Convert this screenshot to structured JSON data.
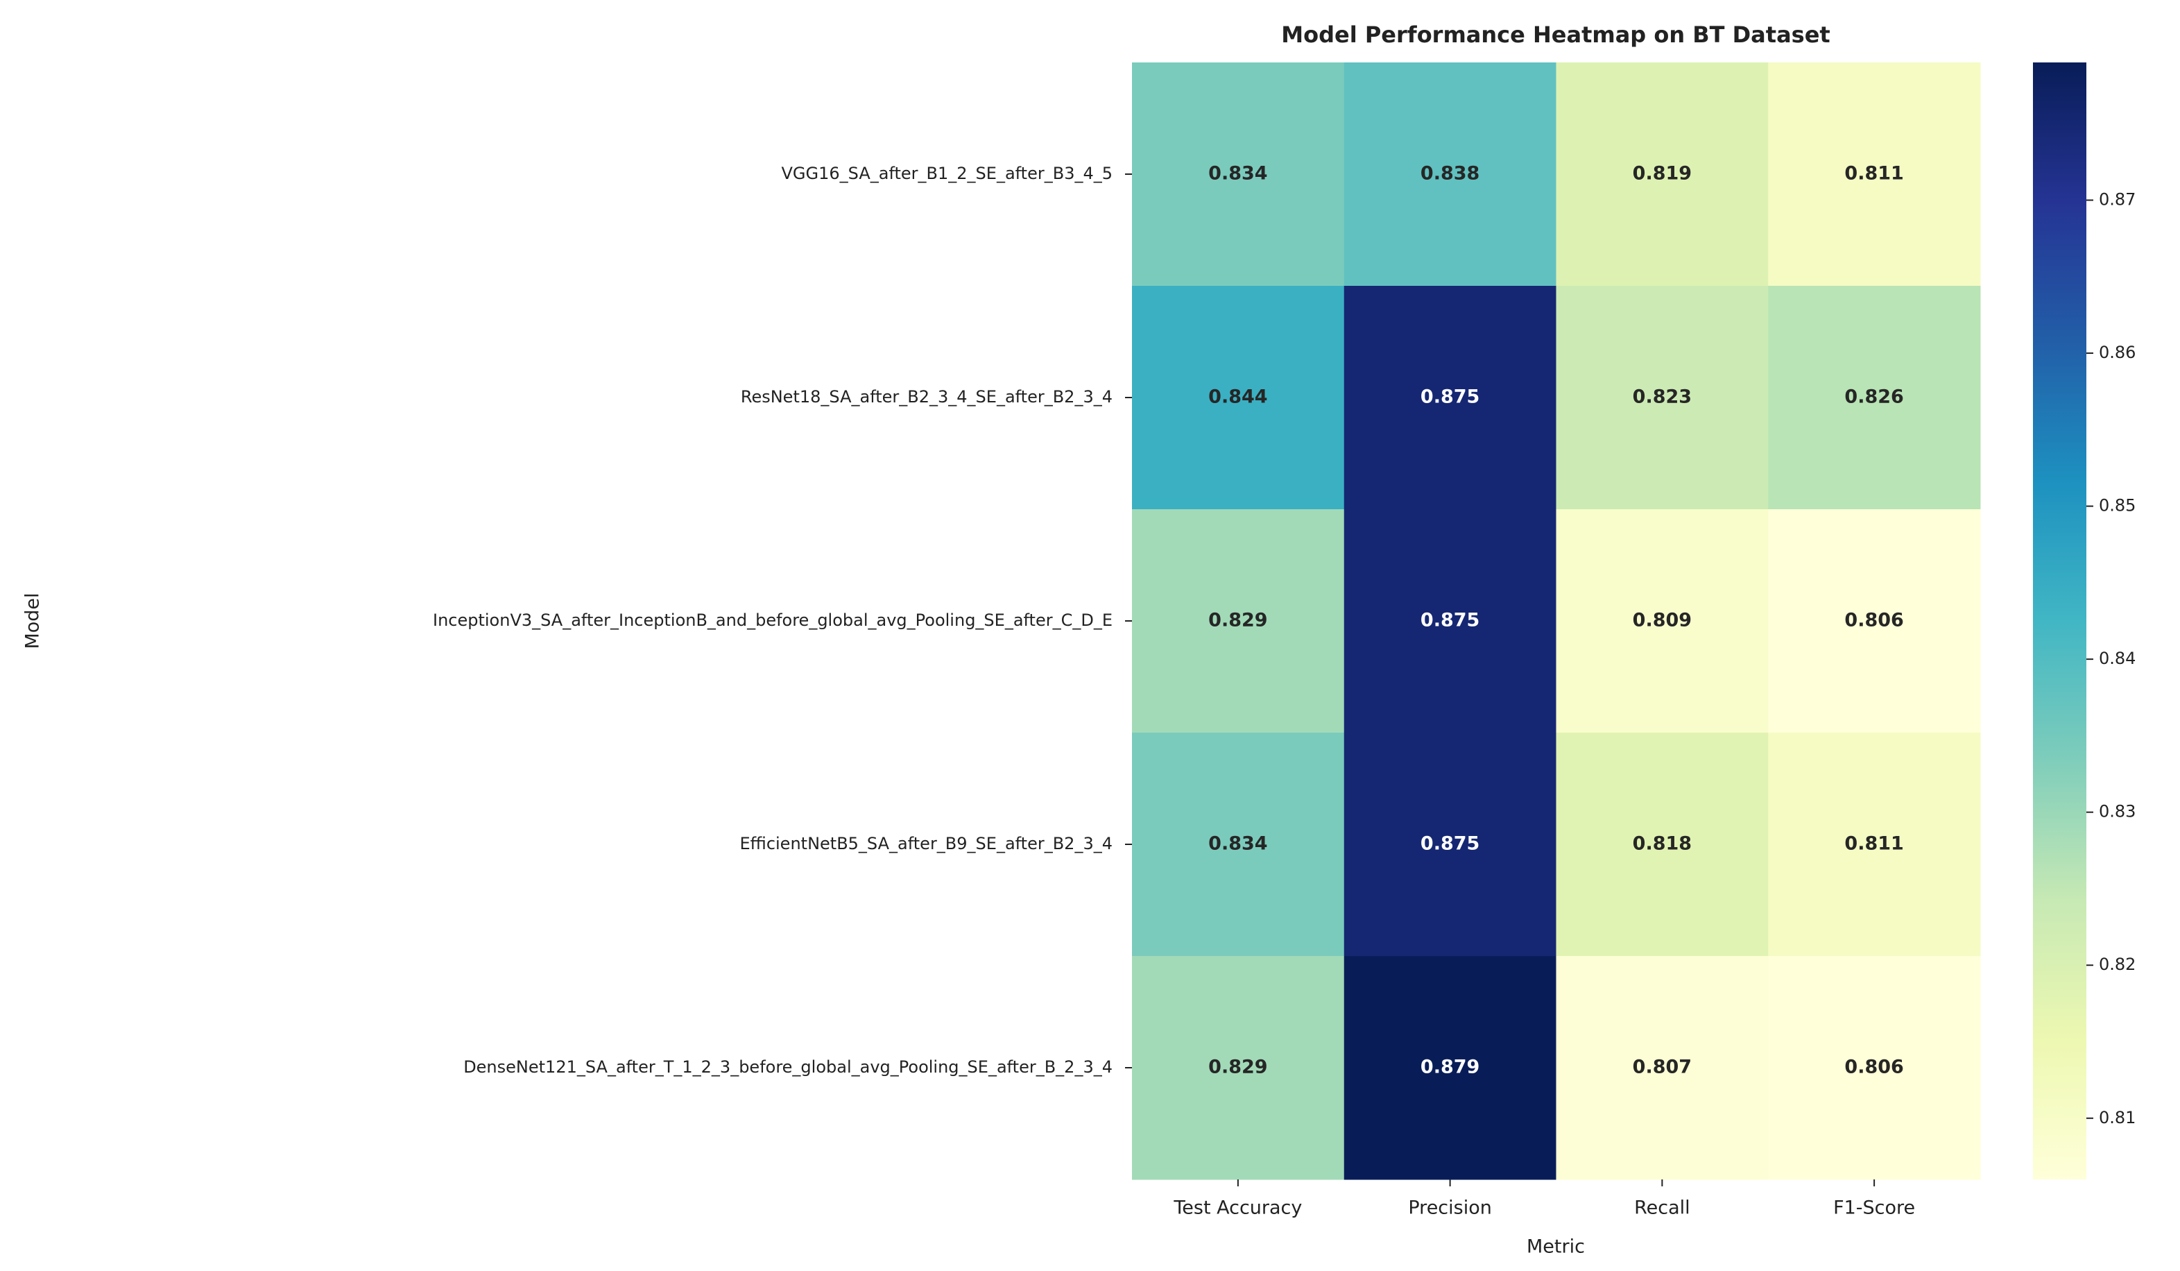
{
  "chart_data": {
    "type": "heatmap",
    "title": "Model Performance Heatmap on BT Dataset",
    "xlabel": "Metric",
    "ylabel": "Model",
    "x": [
      "Test Accuracy",
      "Precision",
      "Recall",
      "F1-Score"
    ],
    "y": [
      "VGG16_SA_after_B1_2_SE_after_B3_4_5",
      "ResNet18_SA_after_B2_3_4_SE_after_B2_3_4",
      "InceptionV3_SA_after_InceptionB_and_before_global_avg_Pooling_SE_after_C_D_E",
      "EfficientNetB5_SA_after_B9_SE_after_B2_3_4",
      "DenseNet121_SA_after_T_1_2_3_before_global_avg_Pooling_SE_after_B_2_3_4"
    ],
    "values": [
      [
        0.834,
        0.838,
        0.819,
        0.811
      ],
      [
        0.844,
        0.875,
        0.823,
        0.826
      ],
      [
        0.829,
        0.875,
        0.809,
        0.806
      ],
      [
        0.834,
        0.875,
        0.818,
        0.811
      ],
      [
        0.829,
        0.879,
        0.807,
        0.806
      ]
    ],
    "colormap": "YlGnBu",
    "clim": [
      0.806,
      0.879
    ],
    "cticks": [
      0.81,
      0.82,
      0.83,
      0.84,
      0.85,
      0.86,
      0.87
    ]
  }
}
